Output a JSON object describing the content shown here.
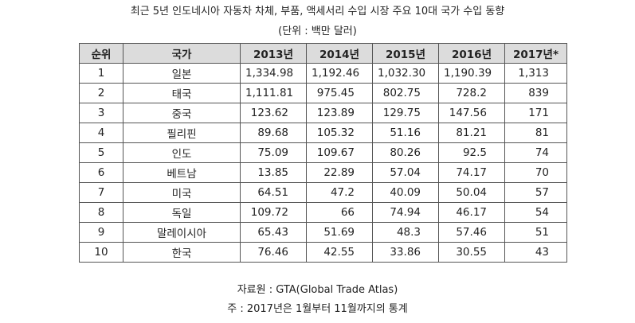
{
  "title": "최근 5년 인도네시아 자동차 차체, 부품, 액세서리 수입 시장 주요 10대 국가 수입 동향",
  "unit": "(단위 : 백만 달러)",
  "table": {
    "headers": [
      "순위",
      "국가",
      "2013년",
      "2014년",
      "2015년",
      "2016년",
      "2017년*"
    ],
    "rows": [
      {
        "rank": "1",
        "country": "일본",
        "v2013": "1,334.98",
        "v2014": "1,192.46",
        "v2015": "1,032.30",
        "v2016": "1,190.39",
        "v2017": "1,313"
      },
      {
        "rank": "2",
        "country": "태국",
        "v2013": "1,111.81",
        "v2014": "975.45",
        "v2015": "802.75",
        "v2016": "728.2",
        "v2017": "839"
      },
      {
        "rank": "3",
        "country": "중국",
        "v2013": "123.62",
        "v2014": "123.89",
        "v2015": "129.75",
        "v2016": "147.56",
        "v2017": "171"
      },
      {
        "rank": "4",
        "country": "필리핀",
        "v2013": "89.68",
        "v2014": "105.32",
        "v2015": "51.16",
        "v2016": "81.21",
        "v2017": "81"
      },
      {
        "rank": "5",
        "country": "인도",
        "v2013": "75.09",
        "v2014": "109.67",
        "v2015": "80.26",
        "v2016": "92.5",
        "v2017": "74"
      },
      {
        "rank": "6",
        "country": "베트남",
        "v2013": "13.85",
        "v2014": "22.89",
        "v2015": "57.04",
        "v2016": "74.17",
        "v2017": "70"
      },
      {
        "rank": "7",
        "country": "미국",
        "v2013": "64.51",
        "v2014": "47.2",
        "v2015": "40.09",
        "v2016": "50.04",
        "v2017": "57"
      },
      {
        "rank": "8",
        "country": "독일",
        "v2013": "109.72",
        "v2014": "66",
        "v2015": "74.94",
        "v2016": "46.17",
        "v2017": "54"
      },
      {
        "rank": "9",
        "country": "말레이시아",
        "v2013": "65.43",
        "v2014": "51.69",
        "v2015": "48.3",
        "v2016": "57.46",
        "v2017": "51"
      },
      {
        "rank": "10",
        "country": "한국",
        "v2013": "76.46",
        "v2014": "42.55",
        "v2015": "33.86",
        "v2016": "30.55",
        "v2017": "43"
      }
    ]
  },
  "source": "자료원 : GTA(Global Trade Atlas)",
  "note": "주 : 2017년은 1월부터 11월까지의 통계"
}
